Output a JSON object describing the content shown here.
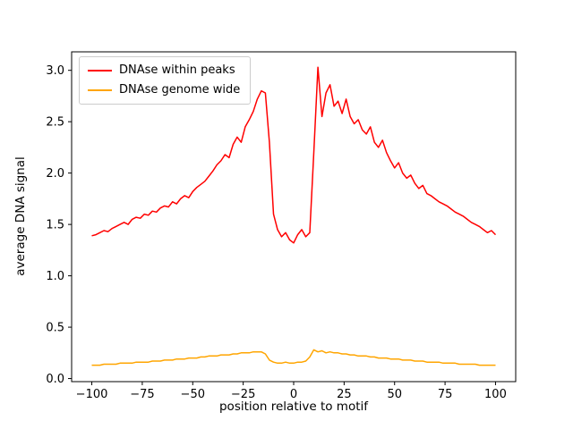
{
  "figure": {
    "background": "#ffffff"
  },
  "chart_data": {
    "type": "line",
    "title": "",
    "xlabel": "position relative to motif",
    "ylabel": "average DNA signal",
    "xlim": [
      -110,
      110
    ],
    "ylim": [
      -0.03,
      3.18
    ],
    "grid": false,
    "legend_position": "upper left",
    "xticks": [
      -100,
      -75,
      -50,
      -25,
      0,
      25,
      50,
      75,
      100
    ],
    "xtick_labels": [
      "−100",
      "−75",
      "−50",
      "−25",
      "0",
      "25",
      "50",
      "75",
      "100"
    ],
    "yticks": [
      0,
      0.5,
      1,
      1.5,
      2,
      2.5,
      3
    ],
    "ytick_labels": [
      "0.0",
      "0.5",
      "1.0",
      "1.5",
      "2.0",
      "2.5",
      "3.0"
    ],
    "x": [
      -100,
      -98,
      -96,
      -94,
      -92,
      -90,
      -88,
      -86,
      -84,
      -82,
      -80,
      -78,
      -76,
      -74,
      -72,
      -70,
      -68,
      -66,
      -64,
      -62,
      -60,
      -58,
      -56,
      -54,
      -52,
      -50,
      -48,
      -46,
      -44,
      -42,
      -40,
      -38,
      -36,
      -34,
      -32,
      -30,
      -28,
      -26,
      -24,
      -22,
      -20,
      -18,
      -16,
      -14,
      -12,
      -10,
      -8,
      -6,
      -4,
      -2,
      0,
      2,
      4,
      6,
      8,
      10,
      12,
      14,
      16,
      18,
      20,
      22,
      24,
      26,
      28,
      30,
      32,
      34,
      36,
      38,
      40,
      42,
      44,
      46,
      48,
      50,
      52,
      54,
      56,
      58,
      60,
      62,
      64,
      66,
      68,
      70,
      72,
      74,
      76,
      78,
      80,
      82,
      84,
      86,
      88,
      90,
      92,
      94,
      96,
      98,
      100
    ],
    "series": [
      {
        "name": "DNAse within peaks",
        "color": "#ff0000",
        "values": [
          1.39,
          1.4,
          1.42,
          1.44,
          1.43,
          1.46,
          1.48,
          1.5,
          1.52,
          1.5,
          1.55,
          1.57,
          1.56,
          1.6,
          1.59,
          1.63,
          1.62,
          1.66,
          1.68,
          1.67,
          1.72,
          1.7,
          1.75,
          1.78,
          1.76,
          1.82,
          1.86,
          1.89,
          1.92,
          1.97,
          2.02,
          2.08,
          2.12,
          2.18,
          2.15,
          2.28,
          2.35,
          2.3,
          2.45,
          2.52,
          2.6,
          2.72,
          2.8,
          2.78,
          2.3,
          1.6,
          1.45,
          1.38,
          1.42,
          1.35,
          1.32,
          1.4,
          1.45,
          1.38,
          1.42,
          2.2,
          3.03,
          2.55,
          2.78,
          2.86,
          2.65,
          2.7,
          2.58,
          2.72,
          2.55,
          2.48,
          2.52,
          2.42,
          2.38,
          2.45,
          2.3,
          2.25,
          2.32,
          2.2,
          2.12,
          2.05,
          2.1,
          2.0,
          1.95,
          1.98,
          1.9,
          1.85,
          1.88,
          1.8,
          1.78,
          1.75,
          1.72,
          1.7,
          1.68,
          1.65,
          1.62,
          1.6,
          1.58,
          1.55,
          1.52,
          1.5,
          1.48,
          1.45,
          1.42,
          1.44,
          1.4
        ]
      },
      {
        "name": "DNAse genome wide",
        "color": "#ffa500",
        "values": [
          0.13,
          0.13,
          0.13,
          0.14,
          0.14,
          0.14,
          0.14,
          0.15,
          0.15,
          0.15,
          0.15,
          0.16,
          0.16,
          0.16,
          0.16,
          0.17,
          0.17,
          0.17,
          0.18,
          0.18,
          0.18,
          0.19,
          0.19,
          0.19,
          0.2,
          0.2,
          0.2,
          0.21,
          0.21,
          0.22,
          0.22,
          0.22,
          0.23,
          0.23,
          0.23,
          0.24,
          0.24,
          0.25,
          0.25,
          0.25,
          0.26,
          0.26,
          0.26,
          0.24,
          0.18,
          0.16,
          0.15,
          0.15,
          0.16,
          0.15,
          0.15,
          0.16,
          0.16,
          0.17,
          0.21,
          0.28,
          0.26,
          0.27,
          0.25,
          0.26,
          0.25,
          0.25,
          0.24,
          0.24,
          0.23,
          0.23,
          0.22,
          0.22,
          0.22,
          0.21,
          0.21,
          0.2,
          0.2,
          0.2,
          0.19,
          0.19,
          0.19,
          0.18,
          0.18,
          0.18,
          0.17,
          0.17,
          0.17,
          0.16,
          0.16,
          0.16,
          0.16,
          0.15,
          0.15,
          0.15,
          0.15,
          0.14,
          0.14,
          0.14,
          0.14,
          0.14,
          0.13,
          0.13,
          0.13,
          0.13,
          0.13
        ]
      }
    ]
  }
}
